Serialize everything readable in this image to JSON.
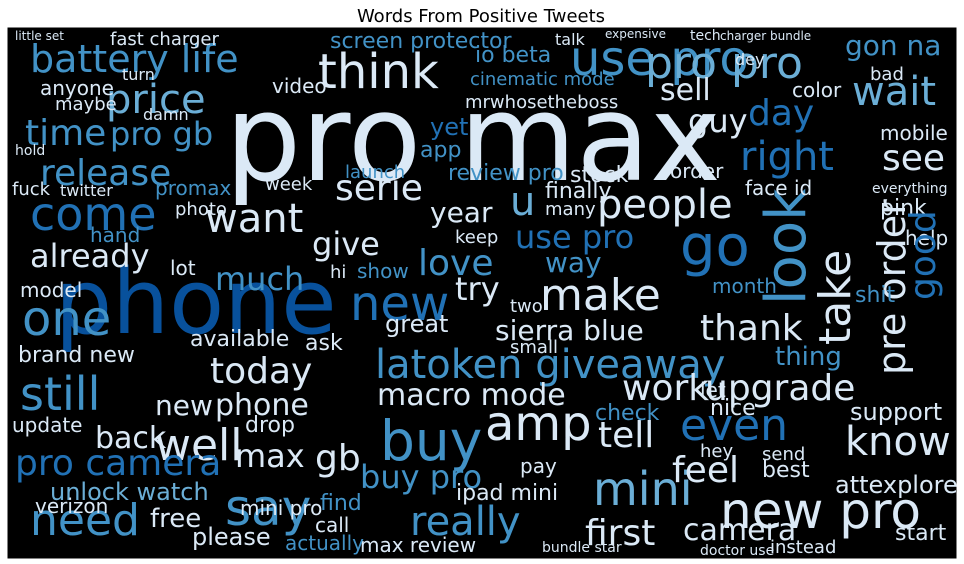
{
  "title": "Words From Positive Tweets",
  "words": [
    "pro max",
    "phone",
    "battery life",
    "think",
    "use pro",
    "pro pro",
    "gon na",
    "price",
    "sell",
    "wait",
    "day",
    "time",
    "pro gb",
    "guy",
    "right",
    "see",
    "release",
    "come",
    "want",
    "year",
    "u",
    "people",
    "go",
    "look",
    "take",
    "pre order",
    "already",
    "give",
    "use pro",
    "love",
    "try",
    "make",
    "new",
    "one",
    "much",
    "latoken giveaway",
    "sierra blue",
    "great",
    "thank",
    "today",
    "upgrade",
    "work",
    "still",
    "brand new",
    "phone",
    "new",
    "macro mode",
    "buy",
    "amp",
    "tell",
    "even",
    "know",
    "well",
    "max",
    "gb",
    "pro camera",
    "unlock watch",
    "say",
    "buy pro",
    "mini",
    "feel",
    "new pro",
    "need",
    "really",
    "first",
    "camera",
    "please",
    "free",
    "max review",
    "ipad mini",
    "mini pro",
    "update",
    "back",
    "attexplore",
    "support",
    "review pro",
    "screen protector",
    "fast charger",
    "io beta",
    "cinematic mode",
    "mrwhosetheboss",
    "anyone",
    "video",
    "color",
    "stock",
    "finally",
    "order",
    "face id",
    "pink",
    "help",
    "good",
    "shit",
    "month",
    "way",
    "hand",
    "lot",
    "model",
    "show",
    "hi",
    "two",
    "ask",
    "available",
    "small",
    "nice",
    "check",
    "drop",
    "thing",
    "let",
    "verizon",
    "call",
    "actually",
    "find",
    "pay",
    "best",
    "send",
    "hey",
    "start",
    "instead",
    "bundle star",
    "doctor use",
    "twitter",
    "promax",
    "photo",
    "week",
    "serie",
    "launch",
    "app",
    "yet",
    "everything",
    "mobile",
    "damn",
    "turn",
    "maybe",
    "hold",
    "fuck",
    "little set",
    "talk",
    "dey",
    "tech",
    "expensive",
    "charger bundle",
    "bad",
    "many",
    "keep"
  ]
}
